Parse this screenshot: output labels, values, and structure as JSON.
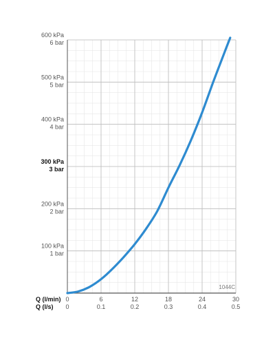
{
  "chart_data": {
    "type": "line",
    "code": "1044C",
    "x_axis": {
      "label_primary": "Q (l/min)",
      "label_secondary": "Q (l/s)",
      "range": [
        0,
        30
      ],
      "ticks": [
        0,
        6,
        12,
        18,
        24,
        30
      ],
      "tick_labels_primary": [
        "0",
        "6",
        "12",
        "18",
        "24",
        "30"
      ],
      "tick_labels_secondary": [
        "0",
        "0.1",
        "0.2",
        "0.3",
        "0.4",
        "0.5"
      ]
    },
    "y_axis": {
      "range": [
        0,
        600
      ],
      "ticks": [
        100,
        200,
        300,
        400,
        500,
        600
      ],
      "tick_labels_primary": [
        "100 kPa",
        "200 kPa",
        "300 kPa",
        "400 kPa",
        "500 kPa",
        "600 kPa"
      ],
      "tick_labels_secondary": [
        "1 bar",
        "2 bar",
        "3 bar",
        "4 bar",
        "5 bar",
        "6 bar"
      ],
      "highlighted_tick": 300
    },
    "grid": true,
    "series": [
      {
        "color": "#2e8bd0",
        "x": [
          0,
          2,
          4,
          6,
          8,
          10,
          12,
          14,
          16,
          18,
          20,
          22,
          24,
          26,
          28,
          29
        ],
        "y": [
          0,
          4,
          15,
          33,
          57,
          85,
          116,
          152,
          194,
          250,
          303,
          362,
          428,
          501,
          571,
          605
        ]
      }
    ]
  }
}
